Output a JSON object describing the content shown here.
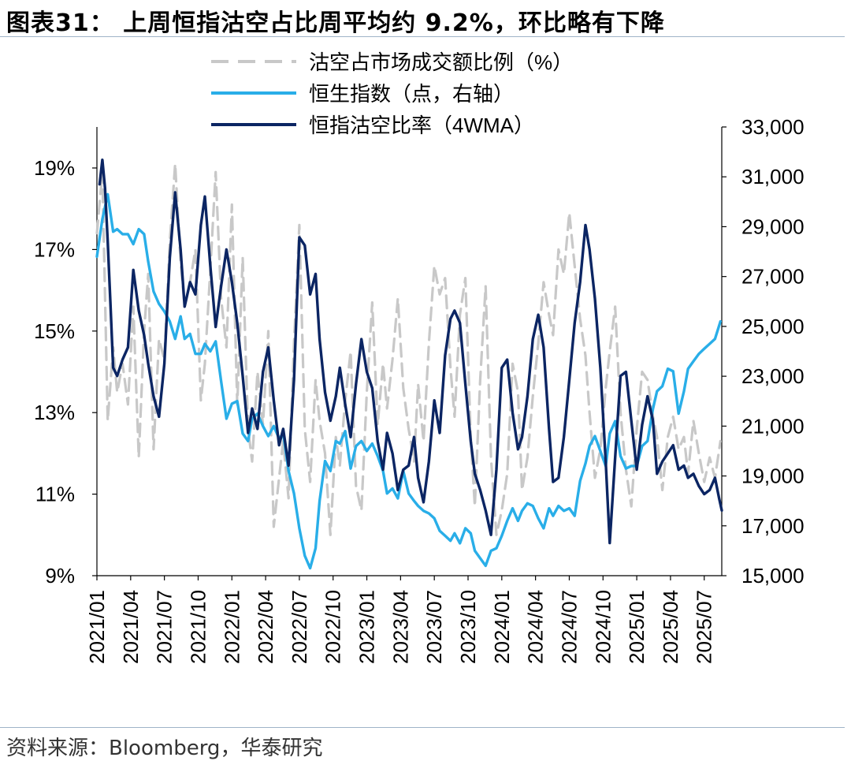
{
  "header": {
    "title": "图表31：  上周恒指沽空占比周平均约 9.2%，环比略有下降"
  },
  "footer": {
    "source": "资料来源：Bloomberg，华泰研究"
  },
  "chart_data": {
    "type": "line",
    "title": "上周恒指沽空占比周平均约 9.2%，环比略有下降",
    "x_categories": [
      "2021/01",
      "2021/04",
      "2021/07",
      "2021/10",
      "2022/01",
      "2022/04",
      "2022/07",
      "2022/10",
      "2023/01",
      "2023/04",
      "2023/07",
      "2023/10",
      "2024/01",
      "2024/04",
      "2024/07",
      "2024/10",
      "2025/01",
      "2025/04",
      "2025/07"
    ],
    "x_range": [
      2021.0,
      2025.63
    ],
    "y_left": {
      "min": 9,
      "max": 20.0,
      "ticks": [
        9,
        11,
        13,
        15,
        17,
        19
      ],
      "tick_labels": [
        "9%",
        "11%",
        "13%",
        "15%",
        "17%",
        "19%"
      ]
    },
    "y_right": {
      "min": 15000,
      "max": 33000,
      "ticks": [
        15000,
        17000,
        19000,
        21000,
        23000,
        25000,
        27000,
        29000,
        31000,
        33000
      ],
      "tick_labels": [
        "15,000",
        "17,000",
        "19,000",
        "21,000",
        "23,000",
        "25,000",
        "27,000",
        "29,000",
        "31,000",
        "33,000"
      ]
    },
    "legend": {
      "position": "top-center"
    },
    "series": [
      {
        "name": "沽空占市场成交额比例（%）",
        "axis": "left",
        "color": "#c8c8c8",
        "dashed": true,
        "x": [
          2021.0,
          2021.04,
          2021.08,
          2021.12,
          2021.15,
          2021.19,
          2021.23,
          2021.27,
          2021.31,
          2021.35,
          2021.38,
          2021.42,
          2021.46,
          2021.5,
          2021.54,
          2021.58,
          2021.62,
          2021.65,
          2021.69,
          2021.73,
          2021.77,
          2021.8,
          2021.84,
          2021.88,
          2021.92,
          2021.96,
          2022.0,
          2022.04,
          2022.08,
          2022.12,
          2022.15,
          2022.19,
          2022.23,
          2022.27,
          2022.31,
          2022.35,
          2022.38,
          2022.42,
          2022.46,
          2022.5,
          2022.54,
          2022.58,
          2022.62,
          2022.65,
          2022.69,
          2022.73,
          2022.77,
          2022.8,
          2022.84,
          2022.88,
          2022.92,
          2022.96,
          2023.0,
          2023.04,
          2023.08,
          2023.12,
          2023.15,
          2023.19,
          2023.23,
          2023.27,
          2023.31,
          2023.35,
          2023.38,
          2023.42,
          2023.46,
          2023.5,
          2023.54,
          2023.58,
          2023.62,
          2023.65,
          2023.69,
          2023.73,
          2023.77,
          2023.8,
          2023.84,
          2023.88,
          2023.92,
          2023.96,
          2024.0,
          2024.04,
          2024.08,
          2024.12,
          2024.15,
          2024.19,
          2024.23,
          2024.27,
          2024.31,
          2024.35,
          2024.38,
          2024.42,
          2024.46,
          2024.5,
          2024.54,
          2024.58,
          2024.62,
          2024.65,
          2024.69,
          2024.73,
          2024.77,
          2024.8,
          2024.84,
          2024.88,
          2024.92,
          2024.96,
          2025.0,
          2025.04,
          2025.08,
          2025.12,
          2025.15,
          2025.19,
          2025.23,
          2025.27,
          2025.31,
          2025.35,
          2025.38,
          2025.42,
          2025.46,
          2025.5,
          2025.54,
          2025.58,
          2025.62
        ],
        "y": [
          17.4,
          18.9,
          12.8,
          14.6,
          13.5,
          14.2,
          13.2,
          15.6,
          11.9,
          15.0,
          16.4,
          12.1,
          14.8,
          14.3,
          17.2,
          19.1,
          16.7,
          15.6,
          16.2,
          17.0,
          13.3,
          14.2,
          16.5,
          18.9,
          15.8,
          14.6,
          18.1,
          13.2,
          16.8,
          12.6,
          11.8,
          14.0,
          12.7,
          15.0,
          10.2,
          11.4,
          12.3,
          10.9,
          14.7,
          17.6,
          12.6,
          11.3,
          13.8,
          12.8,
          12.0,
          10.0,
          12.4,
          11.7,
          13.3,
          14.5,
          11.2,
          10.6,
          13.5,
          15.7,
          12.7,
          14.2,
          13.1,
          14.3,
          15.8,
          13.6,
          12.6,
          11.8,
          13.7,
          12.3,
          14.7,
          16.6,
          15.9,
          16.3,
          14.1,
          12.9,
          15.4,
          16.3,
          12.4,
          10.7,
          13.8,
          16.1,
          11.9,
          10.0,
          10.6,
          11.5,
          14.2,
          13.5,
          11.1,
          11.9,
          13.4,
          14.7,
          16.2,
          15.4,
          14.9,
          17.0,
          16.4,
          17.9,
          16.6,
          15.3,
          14.4,
          13.0,
          11.4,
          12.1,
          13.6,
          14.5,
          15.6,
          13.0,
          11.6,
          10.7,
          12.6,
          14.0,
          13.8,
          12.9,
          12.4,
          11.1,
          12.4,
          12.9,
          12.1,
          12.4,
          11.5,
          12.8,
          12.0,
          11.3,
          11.9,
          11.4,
          12.3
        ]
      },
      {
        "name": "恒生指数（点，右轴）",
        "axis": "right",
        "color": "#29aee8",
        "dashed": false,
        "x": [
          2021.0,
          2021.04,
          2021.08,
          2021.12,
          2021.15,
          2021.19,
          2021.23,
          2021.27,
          2021.31,
          2021.35,
          2021.38,
          2021.42,
          2021.46,
          2021.5,
          2021.54,
          2021.58,
          2021.62,
          2021.65,
          2021.69,
          2021.73,
          2021.77,
          2021.8,
          2021.84,
          2021.88,
          2021.92,
          2021.96,
          2022.0,
          2022.04,
          2022.08,
          2022.12,
          2022.15,
          2022.19,
          2022.23,
          2022.27,
          2022.31,
          2022.35,
          2022.38,
          2022.42,
          2022.46,
          2022.5,
          2022.54,
          2022.58,
          2022.62,
          2022.65,
          2022.69,
          2022.73,
          2022.77,
          2022.8,
          2022.84,
          2022.88,
          2022.92,
          2022.96,
          2023.0,
          2023.04,
          2023.08,
          2023.12,
          2023.15,
          2023.19,
          2023.23,
          2023.27,
          2023.31,
          2023.35,
          2023.38,
          2023.42,
          2023.46,
          2023.5,
          2023.54,
          2023.58,
          2023.62,
          2023.65,
          2023.69,
          2023.73,
          2023.77,
          2023.8,
          2023.84,
          2023.88,
          2023.92,
          2023.96,
          2024.0,
          2024.04,
          2024.08,
          2024.12,
          2024.15,
          2024.19,
          2024.23,
          2024.27,
          2024.31,
          2024.35,
          2024.38,
          2024.42,
          2024.46,
          2024.5,
          2024.54,
          2024.58,
          2024.62,
          2024.65,
          2024.69,
          2024.73,
          2024.77,
          2024.8,
          2024.84,
          2024.88,
          2024.92,
          2024.96,
          2025.0,
          2025.04,
          2025.08,
          2025.12,
          2025.15,
          2025.19,
          2025.23,
          2025.27,
          2025.31,
          2025.35,
          2025.38,
          2025.42,
          2025.46,
          2025.5,
          2025.54,
          2025.58,
          2025.62
        ],
        "y": [
          27800,
          29300,
          30300,
          28800,
          28900,
          28700,
          28700,
          28300,
          28900,
          28700,
          27600,
          26400,
          25900,
          25600,
          25200,
          24500,
          25400,
          24500,
          24700,
          23900,
          23900,
          24300,
          24000,
          24400,
          22800,
          21300,
          21900,
          22000,
          20700,
          20400,
          21300,
          21500,
          21000,
          20600,
          21000,
          20500,
          20700,
          19200,
          18300,
          16900,
          15800,
          15300,
          16100,
          18000,
          19600,
          19200,
          20400,
          20300,
          20800,
          19300,
          20200,
          20400,
          20000,
          20300,
          19800,
          19200,
          18300,
          18500,
          18100,
          19200,
          18300,
          18000,
          17800,
          17600,
          17500,
          17300,
          16800,
          16600,
          16400,
          16700,
          16300,
          16900,
          16700,
          16000,
          15700,
          15400,
          16000,
          16100,
          16600,
          17200,
          17700,
          17200,
          17600,
          17900,
          17800,
          17300,
          16900,
          17700,
          17400,
          17800,
          17600,
          17700,
          17400,
          18800,
          19500,
          20200,
          20600,
          20000,
          19400,
          20700,
          21200,
          19800,
          19300,
          19400,
          19400,
          20200,
          20400,
          21700,
          22400,
          22600,
          23300,
          23200,
          21500,
          22400,
          23300,
          23600,
          23900,
          24100,
          24300,
          24500,
          25200
        ]
      },
      {
        "name": "恒指沽空比率（4WMA）",
        "axis": "left",
        "color": "#0b2563",
        "dashed": false,
        "x": [
          2021.02,
          2021.04,
          2021.06,
          2021.08,
          2021.1,
          2021.12,
          2021.15,
          2021.19,
          2021.23,
          2021.27,
          2021.31,
          2021.35,
          2021.38,
          2021.42,
          2021.46,
          2021.5,
          2021.54,
          2021.58,
          2021.62,
          2021.65,
          2021.69,
          2021.73,
          2021.77,
          2021.8,
          2021.84,
          2021.88,
          2021.92,
          2021.96,
          2022.0,
          2022.04,
          2022.08,
          2022.12,
          2022.15,
          2022.19,
          2022.23,
          2022.27,
          2022.31,
          2022.35,
          2022.38,
          2022.42,
          2022.46,
          2022.5,
          2022.54,
          2022.58,
          2022.62,
          2022.65,
          2022.69,
          2022.73,
          2022.77,
          2022.8,
          2022.84,
          2022.88,
          2022.92,
          2022.96,
          2023.0,
          2023.04,
          2023.08,
          2023.12,
          2023.15,
          2023.19,
          2023.23,
          2023.27,
          2023.31,
          2023.35,
          2023.38,
          2023.42,
          2023.46,
          2023.5,
          2023.54,
          2023.58,
          2023.62,
          2023.65,
          2023.69,
          2023.73,
          2023.77,
          2023.8,
          2023.84,
          2023.88,
          2023.92,
          2023.96,
          2024.0,
          2024.04,
          2024.08,
          2024.12,
          2024.15,
          2024.19,
          2024.23,
          2024.27,
          2024.31,
          2024.35,
          2024.38,
          2024.42,
          2024.46,
          2024.5,
          2024.54,
          2024.58,
          2024.62,
          2024.65,
          2024.69,
          2024.73,
          2024.77,
          2024.8,
          2024.84,
          2024.88,
          2024.92,
          2024.96,
          2025.0,
          2025.04,
          2025.08,
          2025.12,
          2025.15,
          2025.19,
          2025.23,
          2025.27,
          2025.31,
          2025.35,
          2025.38,
          2025.42,
          2025.46,
          2025.5,
          2025.54,
          2025.58,
          2025.61,
          2025.63
        ],
        "y": [
          18.6,
          19.2,
          18.5,
          17.2,
          15.7,
          14.1,
          13.9,
          14.3,
          14.6,
          16.5,
          15.5,
          14.9,
          14.2,
          13.4,
          12.9,
          14.2,
          16.8,
          18.4,
          17.0,
          15.6,
          16.2,
          15.9,
          17.6,
          18.3,
          16.6,
          15.1,
          16.1,
          17.0,
          16.2,
          15.2,
          13.9,
          12.5,
          13.1,
          12.6,
          14.0,
          14.6,
          13.3,
          12.2,
          12.6,
          11.7,
          13.8,
          17.3,
          17.1,
          15.9,
          16.4,
          14.8,
          13.5,
          12.8,
          13.4,
          14.1,
          13.2,
          12.4,
          13.7,
          14.8,
          14.0,
          13.6,
          12.3,
          11.6,
          12.5,
          12.0,
          11.1,
          11.6,
          11.7,
          12.4,
          11.4,
          10.8,
          11.8,
          13.3,
          12.5,
          14.4,
          15.3,
          15.5,
          15.2,
          13.7,
          12.3,
          11.5,
          11.1,
          10.6,
          10.0,
          11.6,
          14.1,
          14.3,
          13.0,
          12.1,
          12.4,
          13.4,
          14.8,
          15.4,
          14.6,
          12.6,
          11.3,
          11.4,
          12.4,
          13.8,
          15.2,
          16.2,
          17.6,
          17.0,
          15.8,
          14.1,
          11.8,
          9.8,
          11.9,
          13.9,
          14.0,
          12.8,
          11.6,
          12.7,
          13.4,
          12.8,
          11.5,
          11.8,
          12.0,
          12.2,
          11.6,
          11.7,
          11.4,
          11.5,
          11.2,
          11.0,
          11.1,
          11.4,
          10.9,
          10.6
        ]
      }
    ]
  }
}
